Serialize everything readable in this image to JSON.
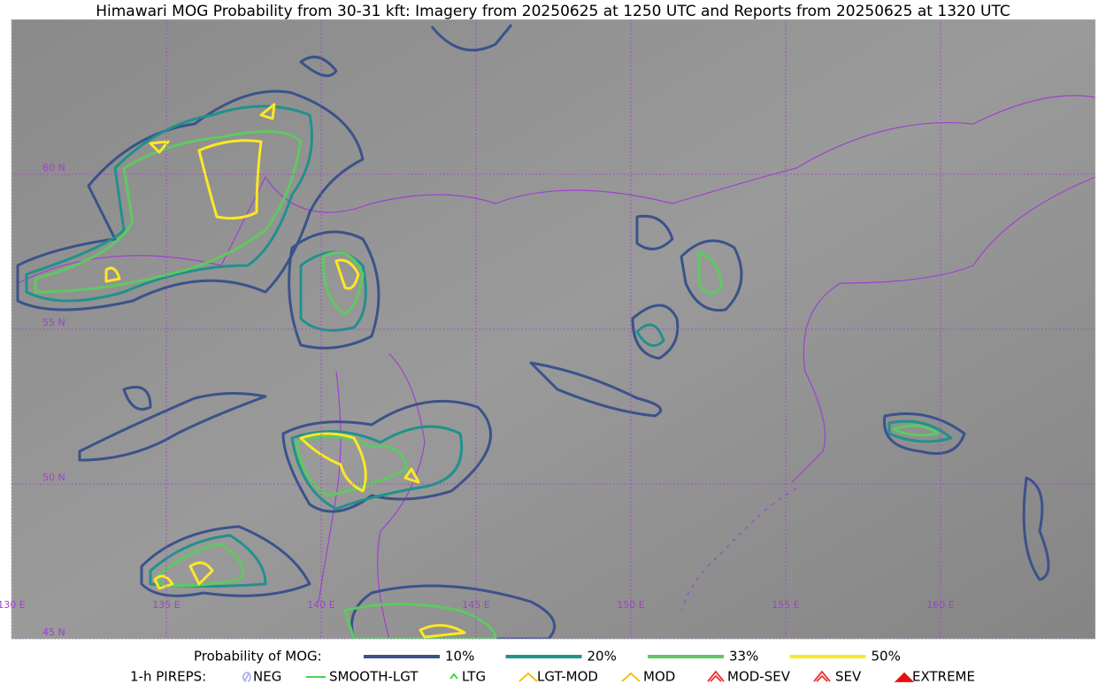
{
  "title": "Himawari MOG Probability from 30-31 kft: Imagery from 20250625 at 1250 UTC and Reports from 20250625 at 1320 UTC",
  "latitude_labels": [
    "60 N",
    "55 N",
    "50 N",
    "45 N"
  ],
  "longitude_labels": [
    "130 E",
    "135 E",
    "140 E",
    "145 E",
    "150 E",
    "155 E",
    "160 E"
  ],
  "legend": {
    "probability": {
      "label": "Probability of MOG:",
      "items": [
        {
          "label": "10%",
          "color": "#3b528b"
        },
        {
          "label": "20%",
          "color": "#21918c"
        },
        {
          "label": "33%",
          "color": "#5ec962"
        },
        {
          "label": "50%",
          "color": "#fde725"
        }
      ]
    },
    "pireps": {
      "label": "1-h PIREPS:",
      "items": [
        {
          "label": "NEG",
          "color": "#b0b0f0"
        },
        {
          "label": "SMOOTH-LGT",
          "color": "#33cc33"
        },
        {
          "label": "LTG",
          "color": "#22dd22"
        },
        {
          "label": "LGT-MOD",
          "color": "#f5b800"
        },
        {
          "label": "MOD",
          "color": "#f5b800"
        },
        {
          "label": "MOD-SEV",
          "color": "#e83030"
        },
        {
          "label": "SEV",
          "color": "#e83030"
        },
        {
          "label": "EXTREME",
          "color": "#e81010"
        }
      ]
    }
  }
}
